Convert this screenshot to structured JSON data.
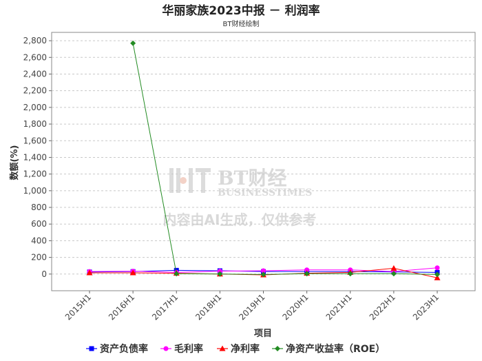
{
  "chart_data": {
    "type": "line",
    "title": "华丽家族2023中报 － 利润率",
    "subtitle": "BT财经绘制",
    "xlabel": "项目",
    "ylabel": "数额(%)",
    "categories": [
      "2015H1",
      "2016H1",
      "2017H1",
      "2018H1",
      "2019H1",
      "2020H1",
      "2021H1",
      "2022H1",
      "2023H1"
    ],
    "ylim": [
      -200,
      2900
    ],
    "yticks": [
      0,
      200,
      400,
      600,
      800,
      1000,
      1200,
      1400,
      1600,
      1800,
      2000,
      2200,
      2400,
      2600,
      2800
    ],
    "ytick_labels": [
      "0",
      "200",
      "400",
      "600",
      "800",
      "1,000",
      "1,200",
      "1,400",
      "1,600",
      "1,800",
      "2,000",
      "2,200",
      "2,400",
      "2,600",
      "2,800"
    ],
    "grid": true,
    "legend_position": "bottom",
    "series": [
      {
        "name": "资产负债率",
        "color": "#0000ff",
        "marker": "square",
        "values": [
          25,
          30,
          45,
          40,
          30,
          30,
          30,
          25,
          20
        ]
      },
      {
        "name": "毛利率",
        "color": "#ff00ff",
        "marker": "circle",
        "values": [
          30,
          35,
          20,
          35,
          40,
          50,
          50,
          30,
          75
        ]
      },
      {
        "name": "净利率",
        "color": "#ff0000",
        "marker": "triangle",
        "values": [
          15,
          15,
          10,
          0,
          -10,
          10,
          20,
          70,
          -45
        ]
      },
      {
        "name": "净资产收益率（ROE）",
        "color": "#228b22",
        "marker": "diamond",
        "values": [
          null,
          2770,
          5,
          0,
          -5,
          5,
          5,
          5,
          -5
        ]
      }
    ]
  },
  "watermark": {
    "brand": "BT财经",
    "brand_sub": "BUSINESSTIMES",
    "note": "内容由AI生成，仅供参考"
  }
}
